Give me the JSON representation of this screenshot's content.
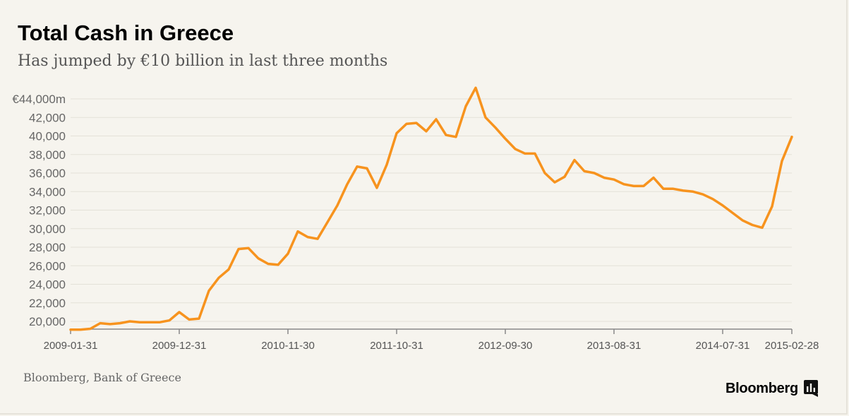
{
  "header": {
    "title": "Total Cash in Greece",
    "subtitle": "Has jumped by €10 billion in last three months"
  },
  "footer": {
    "source": "Bloomberg, Bank of Greece",
    "brand": "Bloomberg"
  },
  "colors": {
    "line": "#f7931e",
    "grid": "#e4e1d8",
    "axis": "#888888",
    "background": "#f6f4ee"
  },
  "chart_data": {
    "type": "line",
    "title": "Total Cash in Greece",
    "subtitle": "Has jumped by €10 billion in last three months",
    "xlabel": "",
    "ylabel": "",
    "y_unit_prefix": "€",
    "y_unit_suffix": "m",
    "ylim": [
      19500,
      44500
    ],
    "ytick_values": [
      20000,
      22000,
      24000,
      26000,
      28000,
      30000,
      32000,
      34000,
      36000,
      38000,
      40000,
      42000,
      44000
    ],
    "ytick_labels": [
      "20,000",
      "22,000",
      "24,000",
      "26,000",
      "28,000",
      "30,000",
      "32,000",
      "34,000",
      "36,000",
      "38,000",
      "40,000",
      "42,000",
      "€44,000m"
    ],
    "xtick_labels": [
      "2009-01-31",
      "2009-12-31",
      "2010-11-30",
      "2011-10-31",
      "2012-09-30",
      "2013-08-31",
      "2014-07-31",
      "2015-02-28"
    ],
    "grid": true,
    "series": [
      {
        "start": "2009-01",
        "frequency": "monthly",
        "values": [
          19100,
          19100,
          19200,
          19800,
          19700,
          19800,
          20000,
          19900,
          19900,
          19900,
          20100,
          21000,
          20200,
          20300,
          23300,
          24700,
          25600,
          27800,
          27900,
          26800,
          26200,
          26100,
          27300,
          29700,
          29100,
          28900,
          30700,
          32500,
          34800,
          36700,
          36500,
          34400,
          36900,
          40300,
          41300,
          41400,
          40500,
          41800,
          40100,
          39900,
          43200,
          45200,
          42000,
          40900,
          39700,
          38600,
          38100,
          38100,
          36000,
          35000,
          35600,
          37400,
          36200,
          36000,
          35500,
          35300,
          34800,
          34600,
          34600,
          35500,
          34300,
          34300,
          34100,
          34000,
          33700,
          33200,
          32500,
          31700,
          30900,
          30400,
          30100,
          32400,
          37300,
          39900
        ]
      }
    ]
  }
}
